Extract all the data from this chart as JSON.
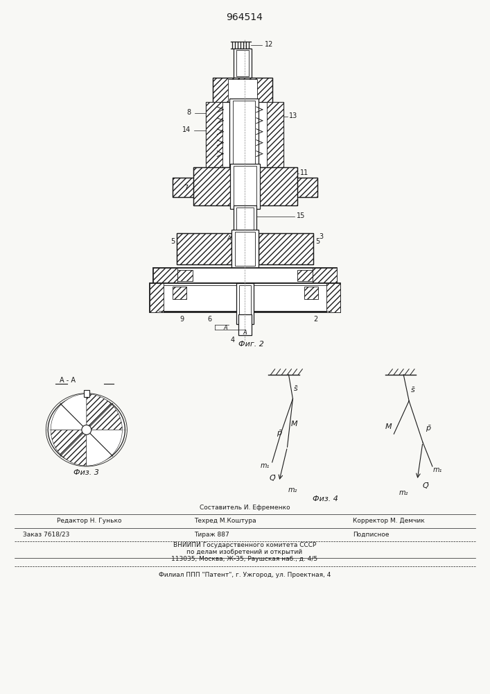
{
  "title": "964514",
  "background_color": "#f8f8f5",
  "fig2_label": "Фиг. 2",
  "fig3_label": "Физ. 3",
  "fig4_label": "Физ. 4",
  "fig3_title": "A - A",
  "footer_line1_center": "Составитель И. Ефременко",
  "footer_line1_left": "Редактор Н. Гунько",
  "footer_line2_center": "Техред М.Коштура",
  "footer_line1_right": "Корректор М. Демчик",
  "footer_order": "Заказ 7618/23",
  "footer_tirazh": "Тираж 887",
  "footer_podpisnoe": "Подписное",
  "footer_vniip1": "ВНИИПИ Государственного комитета СССР",
  "footer_vniip2": "по делам изобретений и открытий",
  "footer_vniip3": "113035, Москва, Ж-35, Раушская наб., д. 4/5",
  "footer_filial": "Филиал ППП \"Патент\", г. Ужгород, ул. Проектная, 4"
}
